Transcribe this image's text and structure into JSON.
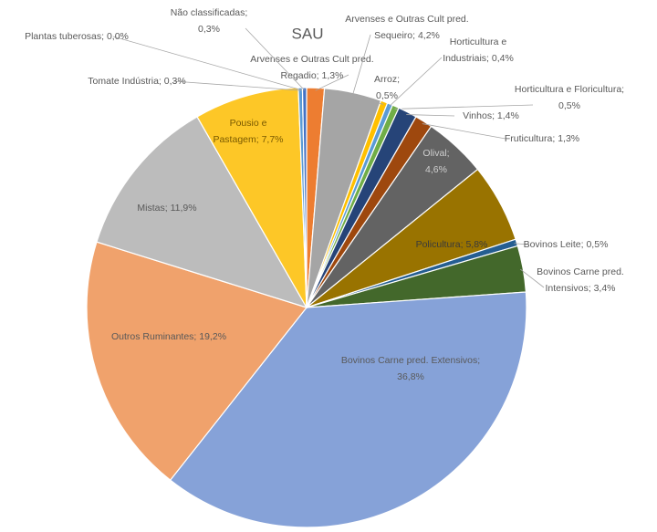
{
  "chart_data": {
    "type": "pie",
    "title": "SAU",
    "labels": [
      "Arvenses e Outras Cult pred. Regadio; 1,3%",
      "Arvenses e Outras Cult pred. Sequeiro; 4,2%",
      "Arroz; 0,5%",
      "Horticultura e Industriais; 0,4%",
      "Horticultura e Floricultura; 0,5%",
      "Vinhos; 1,4%",
      "Fruticultura; 1,3%",
      "Olival; 4,6%",
      "Policultura; 5,8%",
      "Bovinos Leite; 0,5%",
      "Bovinos Carne pred. Intensivos; 3,4%",
      "Bovinos Carne pred. Extensivos; 36,8%",
      "Outros Ruminantes; 19,2%",
      "Mistas; 11,9%",
      "Pousio e Pastagem; 7,7%",
      "Tomate Indústria; 0,3%",
      "Plantas tuberosas; 0,0%",
      "Não classificadas; 0,3%"
    ],
    "values": [
      1.3,
      4.2,
      0.5,
      0.4,
      0.5,
      1.4,
      1.3,
      4.6,
      5.8,
      0.5,
      3.4,
      36.8,
      19.2,
      11.9,
      7.7,
      0.3,
      0.0,
      0.3
    ],
    "colors": [
      "#ed7d31",
      "#a5a5a5",
      "#ffc000",
      "#5b9bd5",
      "#70ad47",
      "#264478",
      "#9e480e",
      "#636363",
      "#997300",
      "#255e91",
      "#43682b",
      "#86a2d8",
      "#f0a26c",
      "#bcbcbc",
      "#fdc727",
      "#5b9bd5",
      "#70ad47",
      "#4472c4"
    ]
  }
}
